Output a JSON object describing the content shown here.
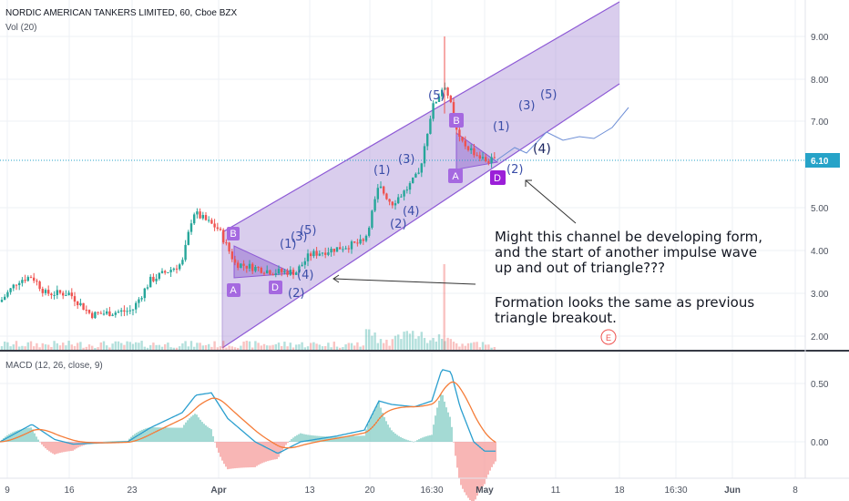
{
  "header": {
    "symbol": "NORDIC AMERICAN TANKERS LIMITED, 60, Cboe BZX",
    "volume_label": "Vol (20)",
    "macd_label": "MACD (12, 26, close, 9)"
  },
  "annotation": {
    "line1": "Might this channel be developing form,",
    "line2": "and the start of another  impulse wave",
    "line3": "up and out of triangle???",
    "line4": "Formation looks the same as previous",
    "line5": "triangle breakout."
  },
  "colors": {
    "up": "#26a69a",
    "down": "#ef5350",
    "channel_line": "#8e5ad6",
    "channel_fill": "#ab90d8",
    "triangle_fill": "#9c7ad2",
    "macd_line": "#2b9fcf",
    "signal_line": "#f57c38",
    "price_tag": "#26a3c8",
    "label_box": "#a569e0",
    "label_box_dark": "#9b1fd8"
  },
  "price_axis": {
    "ticks": [
      "9.00",
      "8.00",
      "7.00",
      "6.10",
      "5.00",
      "4.00",
      "3.00",
      "2.00"
    ],
    "current_price": "6.10"
  },
  "macd_axis": {
    "ticks": [
      "0.50",
      "0.00"
    ]
  },
  "time_axis": {
    "ticks": [
      "9",
      "16",
      "23",
      "Apr",
      "13",
      "20",
      "16:30",
      "May",
      "11",
      "18",
      "16:30",
      "Jun",
      "8"
    ]
  },
  "wave_labels": {
    "left_B": "B",
    "left_A": "A",
    "left_D": "D",
    "left_1": "(1)",
    "left_3": "(3)",
    "left_5": "(5)",
    "left_2": "(2)",
    "left_4": "(4)",
    "mid_1": "(1)",
    "mid_3": "(3)",
    "mid_2": "(2)",
    "mid_4": "(4)",
    "top_5": "(5)",
    "right_B": "B",
    "right_A": "A",
    "right_D": "D",
    "right_2": "(2)",
    "proj_1": "(1)",
    "proj_3": "(3)",
    "proj_5": "(5)",
    "proj_4": "(4)",
    "event": "E"
  },
  "chart_data": [
    {
      "type": "candlestick",
      "title": "NORDIC AMERICAN TANKERS LIMITED, 60, Cboe BZX",
      "x_ticks": [
        "9",
        "16",
        "23",
        "Apr",
        "13",
        "20",
        "16:30",
        "May",
        "11",
        "18",
        "16:30",
        "Jun",
        "8"
      ],
      "y_ticks": [
        2,
        3,
        4,
        5,
        6.1,
        7,
        8,
        9
      ],
      "ylim": [
        1.7,
        9.9
      ],
      "current_price": 6.1,
      "approx_close_path": [
        {
          "x": "9",
          "y": 2.8
        },
        {
          "x": "16",
          "y": 3.0
        },
        {
          "x": "23",
          "y": 2.5
        },
        {
          "x": "Apr",
          "y": 4.5
        },
        {
          "x": "13",
          "y": 3.9
        },
        {
          "x": "20",
          "y": 4.2
        },
        {
          "x": "16:30",
          "y": 7.3
        },
        {
          "x": "May",
          "y": 6.0
        }
      ],
      "spike_high": 9.0,
      "peak_close": 7.9
    },
    {
      "type": "line",
      "title": "MACD (12, 26, close, 9)",
      "y_ticks": [
        0.5,
        0.0
      ],
      "series": [
        {
          "name": "MACD",
          "approx_values": [
            0.0,
            0.12,
            0.05,
            0.15,
            0.55,
            0.2,
            0.4,
            0.3,
            0.65,
            -0.1
          ]
        },
        {
          "name": "Signal",
          "approx_values": [
            0.0,
            0.08,
            0.06,
            0.12,
            0.45,
            0.22,
            0.33,
            0.3,
            0.55,
            -0.05
          ]
        }
      ]
    }
  ]
}
